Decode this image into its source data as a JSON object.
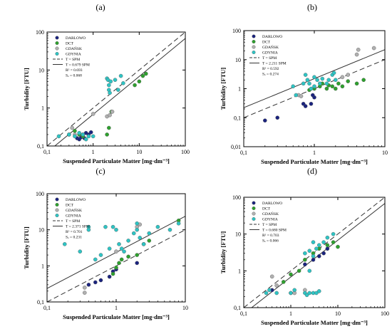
{
  "figure": {
    "panels": [
      "(a)",
      "(b)",
      "(c)",
      "(d)"
    ]
  },
  "colors": {
    "darlowo": "#1a237e",
    "dct": "#2ea02e",
    "gdansk": "#b0b0b0",
    "gdynia": "#2ec4c4",
    "line": "#333333"
  },
  "chart_data": [
    {
      "type": "scatter",
      "panel": "(a)",
      "xlabel": "Suspended Particulate Matter [mg·dm⁻³]",
      "ylabel": "Turbidity [FTU]",
      "xscale": "log",
      "yscale": "log",
      "xlim": [
        0.1,
        100
      ],
      "ylim": [
        0.1,
        100
      ],
      "xticks": [
        "0,1",
        "1",
        "10",
        "100"
      ],
      "yticks": [
        "0,1",
        "1",
        "10",
        "100"
      ],
      "legend": {
        "placement": "top-left",
        "series": [
          "DARLOWO",
          "DCT",
          "GDAŃSK",
          "GDYNIA"
        ],
        "lines": [
          "T = SPM",
          "T = 0.679 SPM"
        ],
        "stats": [
          "R² = 0.693",
          "Sₓ = 0.068"
        ]
      },
      "lines": [
        {
          "name": "T = SPM",
          "style": "dashed",
          "slope": 1
        },
        {
          "name": "T = 0.679 SPM",
          "style": "solid",
          "slope": 0.679
        }
      ],
      "series": [
        {
          "name": "DARLOWO",
          "color": "darlowo",
          "points": [
            [
              0.45,
              0.16
            ],
            [
              0.5,
              0.15
            ],
            [
              0.55,
              0.17
            ],
            [
              0.6,
              0.2
            ],
            [
              0.7,
              0.22
            ],
            [
              0.8,
              0.2
            ],
            [
              0.9,
              0.23
            ],
            [
              0.65,
              0.16
            ]
          ]
        },
        {
          "name": "DCT",
          "color": "dct",
          "points": [
            [
              0.3,
              0.2
            ],
            [
              0.4,
              0.25
            ],
            [
              0.5,
              0.2
            ],
            [
              0.6,
              0.18
            ],
            [
              2.0,
              0.2
            ],
            [
              2.2,
              0.3
            ],
            [
              2.5,
              0.8
            ],
            [
              8.0,
              4.0
            ],
            [
              10,
              5.0
            ],
            [
              12,
              7.0
            ],
            [
              14,
              8.0
            ]
          ]
        },
        {
          "name": "GDAŃSK",
          "color": "gdansk",
          "points": [
            [
              0.35,
              0.3
            ],
            [
              0.4,
              0.2
            ],
            [
              0.6,
              0.2
            ],
            [
              1.0,
              0.7
            ],
            [
              2.0,
              0.6
            ],
            [
              2.3,
              0.65
            ],
            [
              2.6,
              0.8
            ]
          ]
        },
        {
          "name": "GDYNIA",
          "color": "gdynia",
          "points": [
            [
              0.18,
              0.18
            ],
            [
              0.3,
              0.2
            ],
            [
              0.4,
              0.18
            ],
            [
              0.5,
              0.22
            ],
            [
              0.6,
              0.2
            ],
            [
              0.7,
              0.15
            ],
            [
              0.8,
              0.18
            ],
            [
              1.0,
              0.18
            ],
            [
              2.0,
              6.0
            ],
            [
              2.1,
              5.5
            ],
            [
              2.2,
              4.0
            ],
            [
              2.2,
              3.0
            ],
            [
              2.3,
              2.5
            ],
            [
              2.4,
              5.0
            ],
            [
              3.0,
              5.5
            ],
            [
              3.5,
              3.0
            ],
            [
              4.0,
              7.0
            ],
            [
              4.5,
              4.5
            ]
          ]
        }
      ]
    },
    {
      "type": "scatter",
      "panel": "(b)",
      "xlabel": "Suspended Particulate Matter [mg·dm⁻³]",
      "ylabel": "Turbidity [FTU]",
      "xscale": "log",
      "yscale": "log",
      "xlim": [
        0.1,
        10
      ],
      "ylim": [
        0.01,
        100
      ],
      "xticks": [
        "0,1",
        "1",
        "10"
      ],
      "yticks": [
        "0,01",
        "0,1",
        "1",
        "10",
        "100"
      ],
      "legend": {
        "placement": "top-left",
        "series": [
          "DARLOWO",
          "DCT",
          "GDAŃSK",
          "GDYNIA"
        ],
        "lines": [
          "T = SPM",
          "T = 2.211 SPM"
        ],
        "stats": [
          "R² = 0.592",
          "Sₓ = 0.274"
        ]
      },
      "lines": [
        {
          "name": "T = SPM",
          "style": "dashed",
          "slope": 1
        },
        {
          "name": "T = 2.211 SPM",
          "style": "solid",
          "slope": 2.211
        }
      ],
      "series": [
        {
          "name": "DARLOWO",
          "color": "darlowo",
          "points": [
            [
              0.2,
              0.08
            ],
            [
              0.3,
              0.1
            ],
            [
              0.7,
              0.3
            ],
            [
              0.75,
              0.25
            ],
            [
              0.9,
              0.3
            ],
            [
              1.0,
              0.5
            ],
            [
              0.95,
              0.6
            ]
          ]
        },
        {
          "name": "DCT",
          "color": "dct",
          "points": [
            [
              0.85,
              0.9
            ],
            [
              1.0,
              1.0
            ],
            [
              1.2,
              1.2
            ],
            [
              1.3,
              1.5
            ],
            [
              1.5,
              1.0
            ],
            [
              1.6,
              1.3
            ],
            [
              1.8,
              1.2
            ],
            [
              2.0,
              1.0
            ],
            [
              2.2,
              1.5
            ],
            [
              2.5,
              1.2
            ],
            [
              3.0,
              1.8
            ],
            [
              4.0,
              1.5
            ],
            [
              5.0,
              2.0
            ]
          ]
        },
        {
          "name": "GDAŃSK",
          "color": "gdansk",
          "points": [
            [
              0.6,
              0.6
            ],
            [
              0.65,
              0.55
            ],
            [
              2.5,
              2.5
            ],
            [
              3.0,
              3.0
            ],
            [
              4.0,
              15
            ],
            [
              4.2,
              22
            ],
            [
              7.0,
              25
            ]
          ]
        },
        {
          "name": "GDYNIA",
          "color": "gdynia",
          "points": [
            [
              0.5,
              1.2
            ],
            [
              0.55,
              0.6
            ],
            [
              0.7,
              1.5
            ],
            [
              0.75,
              3.0
            ],
            [
              0.8,
              2.0
            ],
            [
              0.85,
              1.5
            ],
            [
              0.9,
              1.0
            ],
            [
              1.0,
              2.5
            ],
            [
              1.0,
              1.2
            ],
            [
              1.1,
              2.0
            ],
            [
              1.2,
              1.5
            ],
            [
              1.3,
              2.2
            ],
            [
              1.5,
              1.5
            ],
            [
              1.6,
              2.0
            ],
            [
              1.8,
              3.0
            ],
            [
              1.9,
              3.5
            ],
            [
              2.0,
              2.0
            ]
          ]
        }
      ]
    },
    {
      "type": "scatter",
      "panel": "(c)",
      "xlabel": "Suspended Particulate Matter [mg·dm⁻³]",
      "ylabel": "Turbidity [FTU]",
      "xscale": "log",
      "yscale": "log",
      "xlim": [
        0.1,
        10
      ],
      "ylim": [
        0.1,
        100
      ],
      "xticks": [
        "0,1",
        "1",
        "10"
      ],
      "yticks": [
        "0,1",
        "1",
        "10",
        "100"
      ],
      "legend": {
        "placement": "top-left",
        "series": [
          "DARLOWO",
          "DCT",
          "GDAŃSK",
          "GDYNIA"
        ],
        "lines": [
          "T = SPM",
          "T = 2.371 SPM"
        ],
        "stats": [
          "R² = 0.701",
          "Sₓ = 0.231"
        ]
      },
      "lines": [
        {
          "name": "T = SPM",
          "style": "dashed",
          "slope": 1
        },
        {
          "name": "T = 2.371 SPM",
          "style": "solid",
          "slope": 2.371
        }
      ],
      "series": [
        {
          "name": "DARLOWO",
          "color": "darlowo",
          "points": [
            [
              0.4,
              0.3
            ],
            [
              0.5,
              0.35
            ],
            [
              0.6,
              0.4
            ],
            [
              0.8,
              0.5
            ],
            [
              0.9,
              0.7
            ],
            [
              1.0,
              0.8
            ],
            [
              2.0,
              1.2
            ]
          ]
        },
        {
          "name": "DCT",
          "color": "dct",
          "points": [
            [
              0.9,
              0.6
            ],
            [
              1.0,
              0.9
            ],
            [
              1.1,
              1.2
            ],
            [
              1.2,
              1.5
            ],
            [
              1.5,
              1.8
            ],
            [
              2.0,
              2.0
            ],
            [
              2.5,
              4.0
            ],
            [
              3.0,
              5.0
            ],
            [
              8.0,
              18
            ]
          ]
        },
        {
          "name": "GDAŃSK",
          "color": "gdansk",
          "points": [
            [
              0.35,
              0.25
            ],
            [
              0.35,
              0.18
            ],
            [
              1.0,
              2.5
            ],
            [
              2.0,
              12
            ],
            [
              2.2,
              14
            ]
          ]
        },
        {
          "name": "GDYNIA",
          "color": "gdynia",
          "points": [
            [
              0.18,
              4.0
            ],
            [
              0.3,
              2.5
            ],
            [
              0.4,
              12
            ],
            [
              0.4,
              10
            ],
            [
              0.5,
              1.5
            ],
            [
              0.6,
              2.0
            ],
            [
              0.7,
              12
            ],
            [
              0.8,
              3.0
            ],
            [
              0.9,
              12
            ],
            [
              1.0,
              10
            ],
            [
              1.1,
              4.0
            ],
            [
              1.2,
              3.0
            ],
            [
              1.3,
              2.5
            ],
            [
              1.5,
              5.0
            ],
            [
              1.8,
              8.0
            ],
            [
              2.0,
              10
            ],
            [
              2.0,
              15
            ],
            [
              2.2,
              6.0
            ],
            [
              2.5,
              4.0
            ],
            [
              3.0,
              8.0
            ],
            [
              4.0,
              12
            ],
            [
              6.0,
              10
            ],
            [
              8.0,
              15
            ]
          ]
        }
      ]
    },
    {
      "type": "scatter",
      "panel": "(d)",
      "xlabel": "Suspended Particulate Matter [mg·dm⁻³]",
      "ylabel": "Turbidity [FTU]",
      "xscale": "log",
      "yscale": "log",
      "xlim": [
        0.1,
        100
      ],
      "ylim": [
        0.1,
        100
      ],
      "xticks": [
        "0,1",
        "1",
        "10",
        "100"
      ],
      "yticks": [
        "0,1",
        "1",
        "10",
        "100"
      ],
      "legend": {
        "placement": "top-left",
        "series": [
          "DARLOWO",
          "DCT",
          "GDAŃSK",
          "GDYNIA"
        ],
        "lines": [
          "T = SPM",
          "T = 0.680 SPM"
        ],
        "stats": [
          "R² = 0.703",
          "Sₓ = 0.066"
        ]
      },
      "lines": [
        {
          "name": "T = SPM",
          "style": "dashed",
          "slope": 1
        },
        {
          "name": "T = 0.680 SPM",
          "style": "solid",
          "slope": 0.68
        }
      ],
      "series": [
        {
          "name": "DARLOWO",
          "color": "darlowo",
          "points": [
            [
              0.4,
              0.3
            ],
            [
              2.0,
              1.5
            ],
            [
              3.0,
              2.0
            ],
            [
              4.0,
              2.5
            ],
            [
              5.0,
              3.0
            ],
            [
              6.0,
              4.0
            ]
          ]
        },
        {
          "name": "DCT",
          "color": "dct",
          "points": [
            [
              0.7,
              0.5
            ],
            [
              1.0,
              0.8
            ],
            [
              1.5,
              1.0
            ],
            [
              2.0,
              2.0
            ],
            [
              3.0,
              3.0
            ],
            [
              4.0,
              4.0
            ],
            [
              6.0,
              5.0
            ],
            [
              8.0,
              6.0
            ],
            [
              10,
              4.5
            ]
          ]
        },
        {
          "name": "GDAŃSK",
          "color": "gdansk",
          "points": [
            [
              0.4,
              0.7
            ],
            [
              0.5,
              0.4
            ],
            [
              1.0,
              0.25
            ],
            [
              1.2,
              0.25
            ],
            [
              2.0,
              0.3
            ]
          ]
        },
        {
          "name": "GDYNIA",
          "color": "gdynia",
          "points": [
            [
              0.3,
              0.25
            ],
            [
              0.35,
              0.3
            ],
            [
              0.5,
              0.25
            ],
            [
              1.0,
              0.25
            ],
            [
              1.2,
              0.3
            ],
            [
              2.0,
              0.25
            ],
            [
              2.2,
              0.22
            ],
            [
              2.5,
              0.25
            ],
            [
              3.0,
              0.25
            ],
            [
              3.5,
              0.25
            ],
            [
              4.0,
              0.28
            ],
            [
              2.0,
              3.0
            ],
            [
              2.5,
              3.5
            ],
            [
              3.0,
              2.5
            ],
            [
              3.5,
              4.0
            ],
            [
              4.0,
              5.0
            ],
            [
              5.0,
              6.0
            ],
            [
              6.0,
              8.0
            ],
            [
              8.0,
              10
            ],
            [
              3.0,
              6.0
            ],
            [
              2.5,
              1.0
            ]
          ]
        }
      ]
    }
  ]
}
